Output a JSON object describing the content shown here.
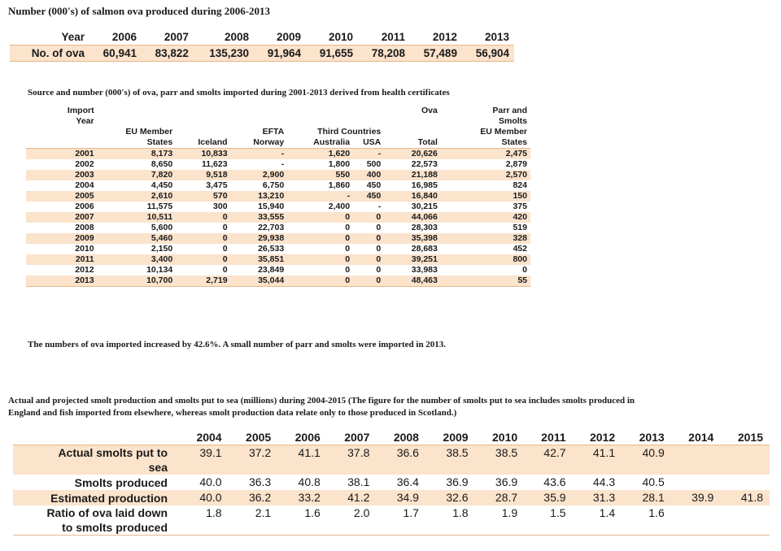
{
  "table1": {
    "caption": "Number (000's) of salmon ova produced during 2006-2013",
    "row_label_year": "Year",
    "row_label_ova": "No. of ova",
    "years": [
      "2006",
      "2007",
      "2008",
      "2009",
      "2010",
      "2011",
      "2012",
      "2013"
    ],
    "values": [
      "60,941",
      "83,822",
      "135,230",
      "91,964",
      "91,655",
      "78,208",
      "57,489",
      "56,904"
    ]
  },
  "table2": {
    "caption": "Source and number (000's) of ova, parr and smolts imported during 2001-2013 derived from health certificates",
    "head": {
      "import_year_1": "Import",
      "import_year_2": "Year",
      "ova": "Ova",
      "parr_1": "Parr and",
      "parr_2": "Smolts",
      "eu_1": "EU Member",
      "eu_2": "States",
      "iceland": "Iceland",
      "efta_1": "EFTA",
      "efta_2": "Norway",
      "third": "Third Countries",
      "australia": "Australia",
      "usa": "USA",
      "total": "Total",
      "eu2_1": "EU Member",
      "eu2_2": "States"
    },
    "rows": [
      {
        "year": "2001",
        "eu": "8,173",
        "iceland": "10,833",
        "norway": "-",
        "australia": "1,620",
        "usa": "-",
        "total": "20,626",
        "parr": "2,475"
      },
      {
        "year": "2002",
        "eu": "8,650",
        "iceland": "11,623",
        "norway": "-",
        "australia": "1,800",
        "usa": "500",
        "total": "22,573",
        "parr": "2,879"
      },
      {
        "year": "2003",
        "eu": "7,820",
        "iceland": "9,518",
        "norway": "2,900",
        "australia": "550",
        "usa": "400",
        "total": "21,188",
        "parr": "2,570"
      },
      {
        "year": "2004",
        "eu": "4,450",
        "iceland": "3,475",
        "norway": "6,750",
        "australia": "1,860",
        "usa": "450",
        "total": "16,985",
        "parr": "824"
      },
      {
        "year": "2005",
        "eu": "2,610",
        "iceland": "570",
        "norway": "13,210",
        "australia": "-",
        "usa": "450",
        "total": "16,840",
        "parr": "150"
      },
      {
        "year": "2006",
        "eu": "11,575",
        "iceland": "300",
        "norway": "15,940",
        "australia": "2,400",
        "usa": "-",
        "total": "30,215",
        "parr": "375"
      },
      {
        "year": "2007",
        "eu": "10,511",
        "iceland": "0",
        "norway": "33,555",
        "australia": "0",
        "usa": "0",
        "total": "44,066",
        "parr": "420"
      },
      {
        "year": "2008",
        "eu": "5,600",
        "iceland": "0",
        "norway": "22,703",
        "australia": "0",
        "usa": "0",
        "total": "28,303",
        "parr": "519"
      },
      {
        "year": "2009",
        "eu": "5,460",
        "iceland": "0",
        "norway": "29,938",
        "australia": "0",
        "usa": "0",
        "total": "35,398",
        "parr": "328"
      },
      {
        "year": "2010",
        "eu": "2,150",
        "iceland": "0",
        "norway": "26,533",
        "australia": "0",
        "usa": "0",
        "total": "28,683",
        "parr": "452"
      },
      {
        "year": "2011",
        "eu": "3,400",
        "iceland": "0",
        "norway": "35,851",
        "australia": "0",
        "usa": "0",
        "total": "39,251",
        "parr": "800"
      },
      {
        "year": "2012",
        "eu": "10,134",
        "iceland": "0",
        "norway": "23,849",
        "australia": "0",
        "usa": "0",
        "total": "33,983",
        "parr": "0"
      },
      {
        "year": "2013",
        "eu": "10,700",
        "iceland": "2,719",
        "norway": "35,044",
        "australia": "0",
        "usa": "0",
        "total": "48,463",
        "parr": "55"
      }
    ],
    "note": "The numbers of ova imported increased by 42.6%. A small number of parr and smolts were imported in 2013."
  },
  "table3": {
    "caption_1": "Actual and projected smolt production and smolts put to sea (millions) during 2004-2015 (The figure for the number of smolts put to sea includes smolts produced in",
    "caption_2": "England and fish imported from elsewhere, whereas smolt production data relate only to those produced in Scotland.)",
    "years": [
      "2004",
      "2005",
      "2006",
      "2007",
      "2008",
      "2009",
      "2010",
      "2011",
      "2012",
      "2013",
      "2014",
      "2015"
    ],
    "rows": [
      {
        "label_1": "Actual smolts put to",
        "label_2": "sea",
        "values": [
          "39.1",
          "37.2",
          "41.1",
          "37.8",
          "36.6",
          "38.5",
          "38.5",
          "42.7",
          "41.1",
          "40.9",
          "",
          ""
        ]
      },
      {
        "label_1": "Smolts produced",
        "label_2": "",
        "values": [
          "40.0",
          "36.3",
          "40.8",
          "38.1",
          "36.4",
          "36.9",
          "36.9",
          "43.6",
          "44.3",
          "40.5",
          "",
          ""
        ]
      },
      {
        "label_1": "Estimated production",
        "label_2": "",
        "values": [
          "40.0",
          "36.2",
          "33.2",
          "41.2",
          "34.9",
          "32.6",
          "28.7",
          "35.9",
          "31.3",
          "28.1",
          "39.9",
          "41.8"
        ]
      },
      {
        "label_1": "Ratio of ova laid down",
        "label_2": "to smolts produced",
        "values": [
          "1.8",
          "2.1",
          "1.6",
          "2.0",
          "1.7",
          "1.8",
          "1.9",
          "1.5",
          "1.4",
          "1.6",
          "",
          ""
        ]
      }
    ]
  }
}
